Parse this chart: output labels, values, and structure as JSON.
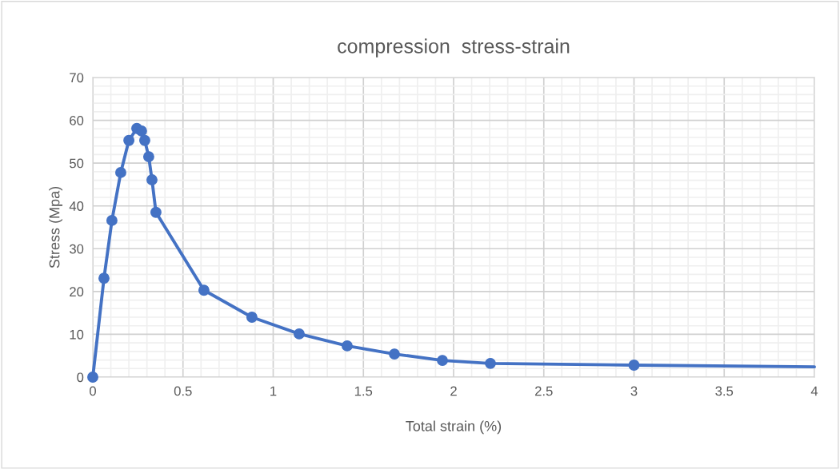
{
  "chart_data": {
    "type": "line",
    "title": "compression  stress-strain",
    "xlabel": "Total strain (%)",
    "ylabel": "Stress (Mpa)",
    "series": [
      {
        "color": "#4472c4",
        "marker": "circle",
        "x": [
          0,
          0.062,
          0.106,
          0.155,
          0.2,
          0.244,
          0.27,
          0.288,
          0.31,
          0.328,
          0.35,
          0.616,
          0.882,
          1.144,
          1.41,
          1.672,
          1.938,
          2.204,
          3.0
        ],
        "values": [
          0,
          23.1,
          36.6,
          47.8,
          55.3,
          58.1,
          57.5,
          55.3,
          51.5,
          46.1,
          38.5,
          20.3,
          14.0,
          10.1,
          7.3,
          5.4,
          3.9,
          3.2,
          2.8
        ]
      },
      {
        "color": "#4472c4",
        "marker": "none",
        "x": [
          3.0,
          4.0
        ],
        "values": [
          2.8,
          2.4
        ]
      }
    ],
    "xlim": [
      0,
      4
    ],
    "xticks": [
      0,
      0.5,
      1,
      1.5,
      2,
      2.5,
      3,
      3.5,
      4
    ],
    "ylim": [
      0,
      70
    ],
    "yticks": [
      0,
      10,
      20,
      30,
      40,
      50,
      60,
      70
    ],
    "grid": true,
    "legend": false,
    "line_style": "solid"
  }
}
